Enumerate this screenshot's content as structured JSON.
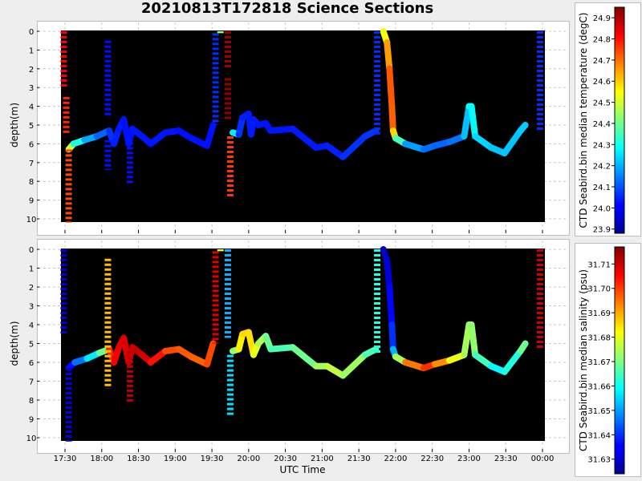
{
  "title": "20210813T172818 Science Sections",
  "xlabel": "UTC Time",
  "x_ticks": [
    "17:30",
    "18:00",
    "18:30",
    "19:00",
    "19:30",
    "20:00",
    "20:30",
    "21:00",
    "21:30",
    "22:00",
    "22:30",
    "23:00",
    "23:30",
    "00:00"
  ],
  "colors": {
    "background": "#000000",
    "panel": "#ffffff",
    "grid": "#c8c8c8"
  },
  "chart_data": [
    {
      "type": "heatmap",
      "title": "",
      "xlabel": "",
      "ylabel": "depth(m)",
      "ylim": [
        10,
        0
      ],
      "y_ticks": [
        "0",
        "1",
        "2",
        "3",
        "4",
        "5",
        "6",
        "7",
        "8",
        "9",
        "10"
      ],
      "colorbar": {
        "label": "CTD Seabird.bin median temperature (degC)",
        "range": [
          23.88,
          24.95
        ],
        "ticks": [
          "24.9",
          "24.8",
          "24.7",
          "24.6",
          "24.5",
          "24.4",
          "24.3",
          "24.2",
          "24.1",
          "24.0",
          "23.9"
        ],
        "colormap": "jet"
      },
      "profiles": [
        {
          "x": "17:29",
          "y": [
            0,
            3
          ],
          "value": 24.83
        },
        {
          "x": "17:31",
          "y": [
            3.5,
            5.5
          ],
          "value": 24.78
        },
        {
          "x": "17:33",
          "y": [
            6.3,
            10.2
          ],
          "value": 24.74
        },
        {
          "x": "18:05",
          "y": [
            0.5,
            4.6
          ],
          "value": 24.03
        },
        {
          "x": "18:05",
          "y": [
            5.8,
            7.4
          ],
          "value": 24.03
        },
        {
          "x": "18:23",
          "y": [
            5.4,
            8.1
          ],
          "value": 24.03
        },
        {
          "x": "19:33",
          "y": [
            0.1,
            5.0
          ],
          "value": 24.06
        },
        {
          "x": "19:37",
          "y": [
            0,
            0.1
          ],
          "value": 24.45
        },
        {
          "x": "19:43",
          "y": [
            0,
            2.0
          ],
          "value": 24.92
        },
        {
          "x": "19:43",
          "y": [
            2.5,
            4.7
          ],
          "value": 24.93
        },
        {
          "x": "19:45",
          "y": [
            5.6,
            8.8
          ],
          "value": 24.76
        },
        {
          "x": "21:45",
          "y": [
            0,
            5.5
          ],
          "value": 24.06
        },
        {
          "x": "23:58",
          "y": [
            0,
            5.3
          ],
          "value": 24.06
        }
      ],
      "tracks": [
        {
          "name": "",
          "points": [
            [
              "17:33",
              6.3,
              24.62
            ],
            [
              "17:37",
              6.0,
              24.38
            ],
            [
              "17:46",
              5.8,
              24.24
            ],
            [
              "17:56",
              5.6,
              24.14
            ],
            [
              "18:06",
              5.3,
              24.1
            ]
          ]
        },
        {
          "name": "",
          "points": [
            [
              "18:06",
              5.3,
              24.08
            ],
            [
              "18:10",
              6.0,
              24.05
            ],
            [
              "18:14",
              5.2,
              24.04
            ],
            [
              "18:18",
              4.7,
              24.03
            ],
            [
              "18:22",
              6.0,
              24.03
            ],
            [
              "18:25",
              5.2,
              24.03
            ],
            [
              "18:33",
              5.6,
              24.04
            ],
            [
              "18:40",
              6.0,
              24.03
            ],
            [
              "18:52",
              5.4,
              24.04
            ],
            [
              "19:03",
              5.3,
              24.03
            ],
            [
              "19:13",
              5.7,
              24.03
            ],
            [
              "19:26",
              6.1,
              24.03
            ],
            [
              "19:31",
              5.0,
              24.03
            ]
          ]
        },
        {
          "name": "",
          "points": [
            [
              "19:47",
              5.4,
              24.45
            ],
            [
              "19:52",
              5.5,
              24.08
            ],
            [
              "19:55",
              4.6,
              24.05
            ],
            [
              "20:00",
              4.4,
              24.04
            ],
            [
              "20:02",
              5.5,
              24.04
            ],
            [
              "20:04",
              4.7,
              24.04
            ],
            [
              "20:08",
              5.0,
              24.04
            ],
            [
              "20:14",
              4.9,
              24.03
            ],
            [
              "20:18",
              5.3,
              24.03
            ],
            [
              "20:36",
              5.2,
              24.04
            ],
            [
              "20:55",
              6.2,
              24.04
            ],
            [
              "21:04",
              6.1,
              24.04
            ],
            [
              "21:17",
              6.7,
              24.05
            ],
            [
              "21:35",
              5.6,
              24.08
            ],
            [
              "21:44",
              5.3,
              24.06
            ]
          ]
        },
        {
          "name": "",
          "points": [
            [
              "21:50",
              0,
              24.48
            ],
            [
              "21:53",
              0.6,
              24.6
            ],
            [
              "21:55",
              2,
              24.7
            ],
            [
              "21:57",
              4,
              24.75
            ],
            [
              "21:58",
              5.3,
              24.68
            ],
            [
              "22:00",
              5.7,
              24.5
            ],
            [
              "22:08",
              6.0,
              24.22
            ],
            [
              "22:23",
              6.3,
              24.14
            ],
            [
              "22:32",
              6.1,
              24.12
            ],
            [
              "22:44",
              5.9,
              24.12
            ],
            [
              "22:56",
              5.6,
              24.15
            ],
            [
              "23:00",
              4.0,
              24.28
            ],
            [
              "23:02",
              4.0,
              24.3
            ],
            [
              "23:05",
              5.6,
              24.26
            ],
            [
              "23:18",
              6.2,
              24.22
            ],
            [
              "23:29",
              6.5,
              24.22
            ],
            [
              "23:42",
              5.3,
              24.22
            ],
            [
              "23:46",
              5.0,
              24.24
            ]
          ]
        }
      ]
    },
    {
      "type": "heatmap",
      "title": "",
      "xlabel": "UTC Time",
      "ylabel": "depth(m)",
      "ylim": [
        10,
        0
      ],
      "y_ticks": [
        "0",
        "1",
        "2",
        "3",
        "4",
        "5",
        "6",
        "7",
        "8",
        "9",
        "10"
      ],
      "colorbar": {
        "label": "CTD Seabird.bin median salinity (psu)",
        "range": [
          31.624,
          31.717
        ],
        "ticks": [
          "31.71",
          "31.70",
          "31.69",
          "31.68",
          "31.67",
          "31.66",
          "31.65",
          "31.64",
          "31.63"
        ],
        "colormap": "jet"
      },
      "profiles": [
        {
          "x": "17:29",
          "y": [
            0,
            4.5
          ],
          "value": 31.631
        },
        {
          "x": "17:33",
          "y": [
            6.3,
            10.2
          ],
          "value": 31.633
        },
        {
          "x": "18:05",
          "y": [
            0.5,
            7.4
          ],
          "value": 31.688
        },
        {
          "x": "18:23",
          "y": [
            5.4,
            8.1
          ],
          "value": 31.711
        },
        {
          "x": "19:33",
          "y": [
            0.1,
            5.0
          ],
          "value": 31.708
        },
        {
          "x": "19:37",
          "y": [
            0,
            0.1
          ],
          "value": 31.68
        },
        {
          "x": "19:43",
          "y": [
            0,
            4.7
          ],
          "value": 31.652
        },
        {
          "x": "19:45",
          "y": [
            5.6,
            8.8
          ],
          "value": 31.656
        },
        {
          "x": "21:45",
          "y": [
            0,
            5.5
          ],
          "value": 31.662
        },
        {
          "x": "23:58",
          "y": [
            0,
            5.3
          ],
          "value": 31.71
        }
      ],
      "tracks": [
        {
          "name": "",
          "points": [
            [
              "17:33",
              6.3,
              31.633
            ],
            [
              "17:38",
              6.0,
              31.64
            ],
            [
              "17:48",
              5.8,
              31.652
            ],
            [
              "17:58",
              5.5,
              31.662
            ],
            [
              "18:06",
              5.3,
              31.675
            ]
          ]
        },
        {
          "name": "",
          "points": [
            [
              "18:06",
              5.3,
              31.7
            ],
            [
              "18:10",
              6.0,
              31.705
            ],
            [
              "18:14",
              5.2,
              31.707
            ],
            [
              "18:18",
              4.7,
              31.708
            ],
            [
              "18:22",
              6.0,
              31.709
            ],
            [
              "18:25",
              5.2,
              31.711
            ],
            [
              "18:33",
              5.6,
              31.71
            ],
            [
              "18:40",
              6.0,
              31.708
            ],
            [
              "18:52",
              5.4,
              31.7
            ],
            [
              "19:03",
              5.3,
              31.697
            ],
            [
              "19:13",
              5.7,
              31.698
            ],
            [
              "19:26",
              6.1,
              31.695
            ],
            [
              "19:31",
              5.0,
              31.703
            ]
          ]
        },
        {
          "name": "",
          "points": [
            [
              "19:47",
              5.4,
              31.662
            ],
            [
              "19:52",
              5.3,
              31.683
            ],
            [
              "19:55",
              4.5,
              31.684
            ],
            [
              "20:00",
              4.4,
              31.687
            ],
            [
              "20:04",
              5.6,
              31.683
            ],
            [
              "20:08",
              5.0,
              31.677
            ],
            [
              "20:14",
              4.6,
              31.672
            ],
            [
              "20:18",
              5.3,
              31.666
            ],
            [
              "20:36",
              5.2,
              31.665
            ],
            [
              "20:55",
              6.2,
              31.673
            ],
            [
              "21:04",
              6.2,
              31.675
            ],
            [
              "21:17",
              6.7,
              31.678
            ],
            [
              "21:35",
              5.6,
              31.668
            ],
            [
              "21:44",
              5.3,
              31.664
            ]
          ]
        },
        {
          "name": "",
          "points": [
            [
              "21:50",
              0,
              31.628
            ],
            [
              "21:53",
              0.6,
              31.631
            ],
            [
              "21:55",
              2,
              31.634
            ],
            [
              "21:57",
              4,
              31.638
            ],
            [
              "21:58",
              5.3,
              31.642
            ],
            [
              "22:00",
              5.7,
              31.662
            ],
            [
              "22:08",
              6.0,
              31.687
            ],
            [
              "22:23",
              6.3,
              31.702
            ],
            [
              "22:32",
              6.1,
              31.7
            ],
            [
              "22:44",
              5.9,
              31.685
            ],
            [
              "22:56",
              5.6,
              31.676
            ],
            [
              "23:00",
              4.0,
              31.672
            ],
            [
              "23:02",
              4.0,
              31.674
            ],
            [
              "23:05",
              5.6,
              31.67
            ],
            [
              "23:18",
              6.2,
              31.66
            ],
            [
              "23:29",
              6.5,
              31.657
            ],
            [
              "23:42",
              5.4,
              31.666
            ],
            [
              "23:46",
              5.0,
              31.672
            ]
          ]
        }
      ]
    }
  ]
}
